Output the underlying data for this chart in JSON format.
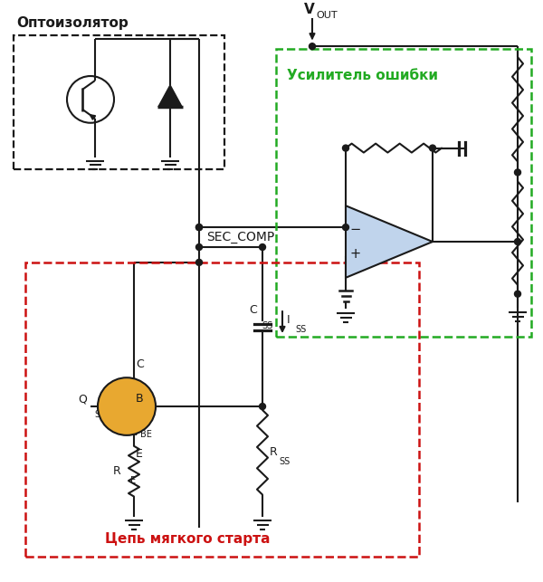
{
  "bg_color": "#ffffff",
  "lc": "#1a1a1a",
  "gc": "#22aa22",
  "rc": "#cc1111",
  "orange": "#e8a830",
  "blue": "#c0d4ec",
  "lw": 1.5,
  "label_opto": "Оптоизолятор",
  "label_ea": "Усилитель ошибки",
  "label_ss": "Цепь мягкого старта",
  "label_sec": "SEC_COMP",
  "label_vout": "V",
  "label_vout_sub": "OUT"
}
